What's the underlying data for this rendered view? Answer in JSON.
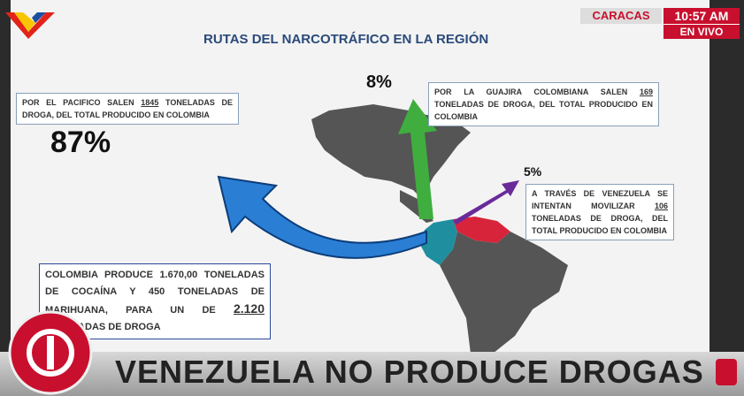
{
  "slide": {
    "title": "RUTAS DEL NARCOTRÁFICO EN LA REGIÓN",
    "pacific": {
      "text_before": "POR EL PACIFICO SALEN",
      "number": "1845",
      "text_after": "TONELADAS DE DROGA, DEL TOTAL PRODUCIDO EN COLOMBIA",
      "percent": "87%"
    },
    "guajira": {
      "percent": "8%",
      "text_before": "POR LA GUAJIRA COLOMBIANA SALEN",
      "number": "169",
      "text_after": "TONELADAS DE DROGA, DEL TOTAL PRODUCIDO EN COLOMBIA"
    },
    "venezuela": {
      "percent": "5%",
      "text_before": "A TRAVÉS DE VENEZUELA SE INTENTAN MOVILIZAR",
      "number": "106",
      "text_after": "TONELADAS DE DROGA, DEL TOTAL PRODUCIDO EN COLOMBIA"
    },
    "production": {
      "text_before": "COLOMBIA PRODUCE 1.670,00 TONELADAS DE COCAÍNA Y 450 TONELADAS DE MARIHUANA, PARA UN",
      "text_hidden_end": "DE",
      "number": "2.120",
      "text_after": "TONELADAS DE DROGA"
    }
  },
  "broadcast": {
    "city": "CARACAS",
    "time": "10:57 AM",
    "live": "EN VIVO",
    "headline": "VENEZUELA NO PRODUCE DROGAS"
  }
}
